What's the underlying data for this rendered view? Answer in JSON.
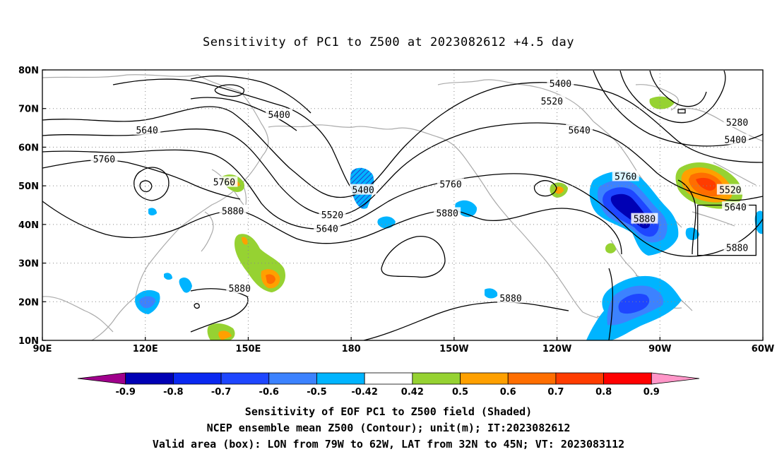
{
  "title": "Sensitivity of PC1 to Z500 at 2023082612 +4.5 day",
  "captions": [
    "Sensitivity of EOF PC1 to Z500 field (Shaded)",
    "NCEP ensemble mean Z500 (Contour); unit(m); IT:2023082612",
    "Valid area (box): LON from 79W to 62W, LAT from 32N to 45N; VT: 2023083112"
  ],
  "map": {
    "lon_range": [
      90,
      300
    ],
    "lat_range": [
      10,
      80
    ],
    "lon_ticks": [
      {
        "value": 90,
        "label": "90E"
      },
      {
        "value": 120,
        "label": "120E"
      },
      {
        "value": 150,
        "label": "150E"
      },
      {
        "value": 180,
        "label": "180"
      },
      {
        "value": 210,
        "label": "150W"
      },
      {
        "value": 240,
        "label": "120W"
      },
      {
        "value": 270,
        "label": "90W"
      },
      {
        "value": 300,
        "label": "60W"
      }
    ],
    "lat_ticks": [
      {
        "value": 10,
        "label": "10N"
      },
      {
        "value": 20,
        "label": "20N"
      },
      {
        "value": 30,
        "label": "30N"
      },
      {
        "value": 40,
        "label": "40N"
      },
      {
        "value": 50,
        "label": "50N"
      },
      {
        "value": 60,
        "label": "60N"
      },
      {
        "value": 70,
        "label": "70N"
      },
      {
        "value": 80,
        "label": "80N"
      }
    ],
    "grid": true,
    "valid_box": {
      "lon": [
        281,
        298
      ],
      "lat": [
        32,
        45
      ]
    }
  },
  "contour_labels": [
    {
      "text": "5400",
      "lon": 159,
      "lat": 68.5
    },
    {
      "text": "5640",
      "lon": 120.5,
      "lat": 64.5
    },
    {
      "text": "5760",
      "lon": 108,
      "lat": 57
    },
    {
      "text": "5760",
      "lon": 143,
      "lat": 51
    },
    {
      "text": "5880",
      "lon": 145.5,
      "lat": 43.5
    },
    {
      "text": "5400",
      "lon": 183.5,
      "lat": 49
    },
    {
      "text": "5520",
      "lon": 174.5,
      "lat": 42.5
    },
    {
      "text": "5640",
      "lon": 173,
      "lat": 39
    },
    {
      "text": "5760",
      "lon": 209,
      "lat": 50.5
    },
    {
      "text": "5880",
      "lon": 208,
      "lat": 43
    },
    {
      "text": "5400",
      "lon": 241,
      "lat": 76.5
    },
    {
      "text": "5520",
      "lon": 238.5,
      "lat": 72
    },
    {
      "text": "5640",
      "lon": 246.5,
      "lat": 64.5
    },
    {
      "text": "5760",
      "lon": 260,
      "lat": 52.5
    },
    {
      "text": "5880",
      "lon": 265.5,
      "lat": 41.5
    },
    {
      "text": "5880",
      "lon": 147.5,
      "lat": 23.5
    },
    {
      "text": "5880",
      "lon": 226.5,
      "lat": 21
    },
    {
      "text": "5280",
      "lon": 292.5,
      "lat": 66.5
    },
    {
      "text": "5400",
      "lon": 292,
      "lat": 62
    },
    {
      "text": "5520",
      "lon": 290.5,
      "lat": 49
    },
    {
      "text": "5640",
      "lon": 292,
      "lat": 44.5
    },
    {
      "text": "5880",
      "lon": 292.5,
      "lat": 34
    }
  ],
  "colorbar": {
    "colors": [
      "#a0008c",
      "#0000b4",
      "#0a28f0",
      "#1e46ff",
      "#3c82ff",
      "#00b4ff",
      "#ffffff",
      "#96d232",
      "#ffa000",
      "#ff6e00",
      "#ff3c00",
      "#ff0000",
      "#ff96c8"
    ],
    "labels": [
      "-0.9",
      "-0.8",
      "-0.7",
      "-0.6",
      "-0.5",
      "-0.42",
      "0.42",
      "0.5",
      "0.6",
      "0.7",
      "0.8",
      "0.9"
    ]
  }
}
